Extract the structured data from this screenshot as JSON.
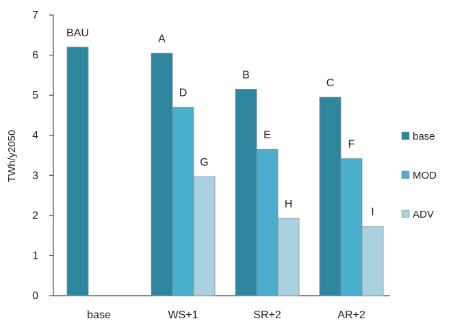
{
  "chart_data": {
    "type": "bar",
    "title": "",
    "xlabel": "",
    "ylabel": "TWh/y2050",
    "ylim": [
      0,
      7
    ],
    "yticks": [
      0,
      1,
      2,
      3,
      4,
      5,
      6,
      7
    ],
    "grid": false,
    "legend_position": "right",
    "categories": [
      "base",
      "WS+1",
      "SR+2",
      "AR+2"
    ],
    "series": [
      {
        "name": "base",
        "color": "#2E869E",
        "values": [
          6.2,
          6.05,
          5.15,
          4.95
        ],
        "labels": [
          "BAU",
          "A",
          "B",
          "C"
        ]
      },
      {
        "name": "MOD",
        "color": "#4AAFCC",
        "values": [
          null,
          4.7,
          3.65,
          3.42
        ],
        "labels": [
          "",
          "D",
          "E",
          "F"
        ]
      },
      {
        "name": "ADV",
        "color": "#A9D1E0",
        "values": [
          null,
          2.97,
          1.93,
          1.73
        ],
        "labels": [
          "",
          "G",
          "H",
          "I"
        ]
      }
    ]
  }
}
